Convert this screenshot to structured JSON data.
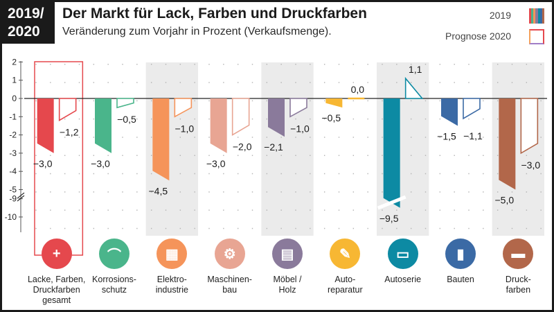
{
  "header": {
    "badge_line1": "2019/",
    "badge_line2": "2020",
    "title": "Der Markt für Lack, Farben und Druckfarben",
    "subtitle": "Veränderung zum Vorjahr in Prozent (Verkaufsmenge)."
  },
  "legend": {
    "label_2019": "2019",
    "label_2020": "Prognose 2020"
  },
  "chart_data": {
    "type": "bar",
    "title": "Der Markt für Lack, Farben und Druckfarben",
    "subtitle": "Veränderung zum Vorjahr in Prozent (Verkaufsmenge).",
    "y_ticks": [
      "2",
      "1",
      "0",
      "-1",
      "-2",
      "-3",
      "-4",
      "-5",
      "-9",
      "-10"
    ],
    "axis_break": "between -5 and -9",
    "ylim": [
      -10,
      2
    ],
    "grid": "dotted",
    "legend_position": "top-right",
    "categories": [
      "Lacke, Farben,\nDruckfarben\ngesamt",
      "Korrosions-\nschutz",
      "Elektro-\nindustrie",
      "Maschinen-\nbau",
      "Möbel /\nHolz",
      "Auto-\nreparatur",
      "Autoserie",
      "Bauten",
      "Druck-\nfarben"
    ],
    "series": [
      {
        "name": "2019",
        "values": [
          -3.0,
          -3.0,
          -4.5,
          -3.0,
          -2.1,
          -0.5,
          -9.5,
          -1.5,
          -5.0
        ]
      },
      {
        "name": "Prognose 2020",
        "values": [
          -1.2,
          -0.5,
          -1.0,
          -2.0,
          -1.0,
          0.0,
          1.1,
          -1.1,
          -3.0
        ]
      }
    ],
    "value_labels_2019": [
      "−3,0",
      "−3,0",
      "−4,5",
      "−3,0",
      "−2,1",
      "−0,5",
      "−9,5",
      "−1,5",
      "−5,0"
    ],
    "value_labels_2020": [
      "−1,2",
      "−0,5",
      "−1,0",
      "−2,0",
      "−1,0",
      "0,0",
      "1,1",
      "−1,1",
      "−3,0"
    ],
    "colors": [
      "#e5484d",
      "#4ab58b",
      "#f5945a",
      "#e8a593",
      "#8a7a9b",
      "#f7b733",
      "#0d8aa3",
      "#3b6aa5",
      "#b2674a"
    ],
    "icons": [
      "recycle-arrow-icon",
      "bridge-icon",
      "circuit-board-icon",
      "robot-arm-icon",
      "furniture-icon",
      "wrench-car-icon",
      "car-icon",
      "paint-roller-icon",
      "ink-rolls-icon"
    ],
    "highlight_category": "Lacke, Farben,\nDruckfarben\ngesamt",
    "shaded_columns": [
      2,
      4,
      6,
      8
    ]
  }
}
